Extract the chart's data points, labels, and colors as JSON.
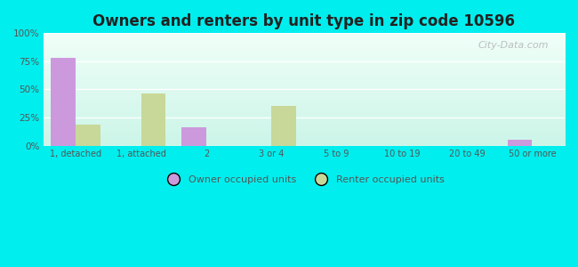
{
  "title": "Owners and renters by unit type in zip code 10596",
  "categories": [
    "1, detached",
    "1, attached",
    "2",
    "3 or 4",
    "5 to 9",
    "10 to 19",
    "20 to 49",
    "50 or more"
  ],
  "owner_values": [
    78,
    0,
    16,
    0,
    0,
    0,
    0,
    5
  ],
  "renter_values": [
    19,
    46,
    0,
    35,
    0,
    0,
    0,
    0
  ],
  "owner_color": "#cc99dd",
  "renter_color": "#c8d898",
  "background_outer": "#00eeee",
  "background_inner_top": "#f0fff8",
  "background_inner_bottom": "#ccf5e8",
  "ylim": [
    0,
    100
  ],
  "yticks": [
    0,
    25,
    50,
    75,
    100
  ],
  "ytick_labels": [
    "0%",
    "25%",
    "50%",
    "75%",
    "100%"
  ],
  "legend_owner": "Owner occupied units",
  "legend_renter": "Renter occupied units",
  "bar_width": 0.38,
  "title_fontsize": 12,
  "watermark": "City-Data.com"
}
